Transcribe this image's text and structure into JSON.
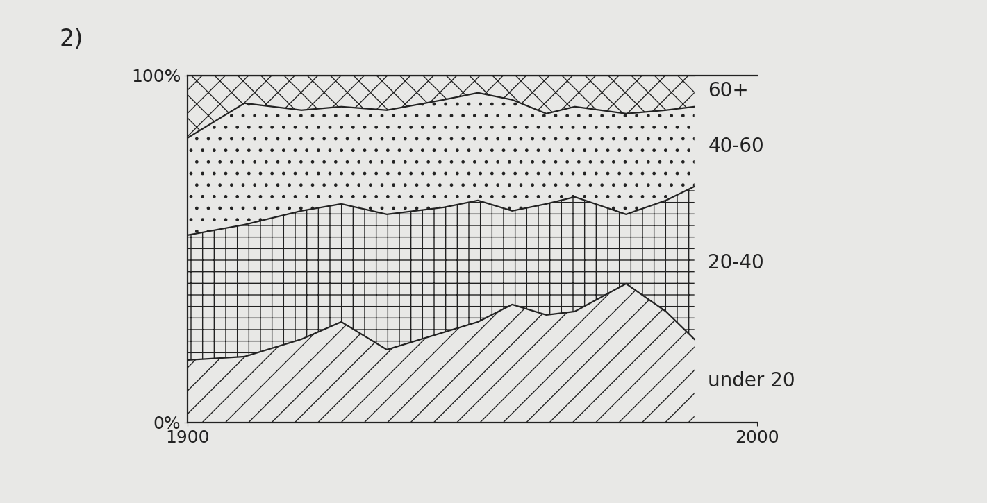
{
  "chart_data": {
    "type": "area",
    "title": "2)",
    "stacked": true,
    "x": [
      1900,
      1910,
      1920,
      1927,
      1935,
      1945,
      1951,
      1957,
      1963,
      1968,
      1977,
      1984,
      1989
    ],
    "series": [
      {
        "name": "under 20",
        "color": "#e8e8e6",
        "values": [
          18,
          19,
          24,
          29,
          21,
          26,
          29,
          34,
          31,
          32,
          40,
          32,
          24
        ]
      },
      {
        "name": "20-40",
        "color": "#e8e8e6",
        "values": [
          36,
          38,
          37,
          34,
          39,
          36,
          35,
          27,
          32,
          33,
          20,
          32,
          44
        ]
      },
      {
        "name": "40-60",
        "color": "#e8e8e6",
        "values": [
          28,
          35,
          29,
          28,
          30,
          31,
          31,
          32,
          26,
          26,
          29,
          26,
          23
        ]
      },
      {
        "name": "60+",
        "color": "#e8e8e6",
        "values": [
          18,
          8,
          10,
          9,
          10,
          7,
          5,
          7,
          11,
          9,
          11,
          10,
          9
        ]
      }
    ],
    "xlim": [
      1900,
      2000
    ],
    "xticks": [
      1900,
      2000
    ],
    "ylim": [
      0,
      100
    ],
    "yticks": [
      {
        "value": 0,
        "label": "0%"
      },
      {
        "value": 100,
        "label": "100%"
      }
    ],
    "grid": false
  }
}
